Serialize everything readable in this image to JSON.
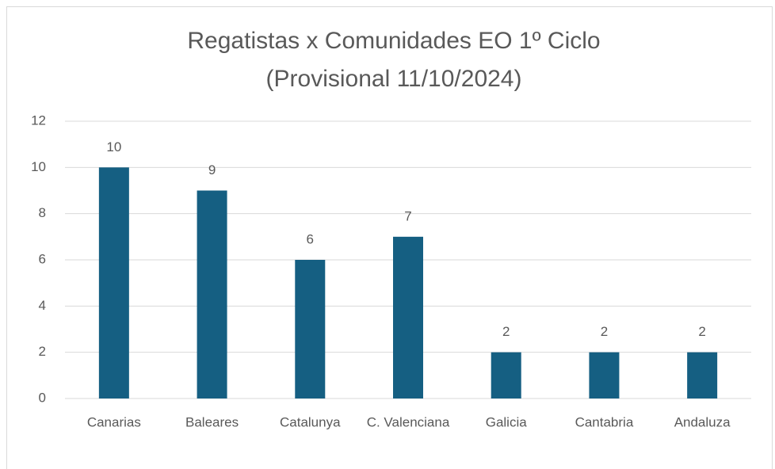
{
  "chart_data": {
    "type": "bar",
    "title": "Regatistas x Comunidades EO 1º Ciclo",
    "subtitle": "(Provisional 11/10/2024)",
    "categories": [
      "Canarias",
      "Baleares",
      "Catalunya",
      "C. Valenciana",
      "Galicia",
      "Cantabria",
      "Andaluza"
    ],
    "values": [
      10,
      9,
      6,
      7,
      2,
      2,
      2
    ],
    "color": "#155f82",
    "ylim": [
      0,
      12
    ],
    "yticks": [
      0,
      2,
      4,
      6,
      8,
      10,
      12
    ],
    "grid": true,
    "data_labels": true
  }
}
